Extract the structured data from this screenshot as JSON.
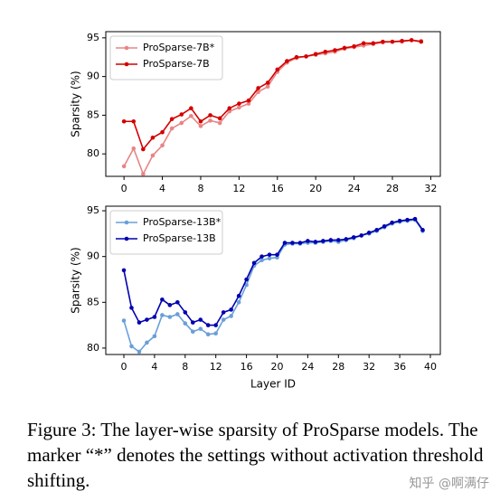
{
  "chart_data": [
    {
      "type": "line",
      "ylabel": "Sparsity (%)",
      "x": [
        0,
        1,
        2,
        3,
        4,
        5,
        6,
        7,
        8,
        9,
        10,
        11,
        12,
        13,
        14,
        15,
        16,
        17,
        18,
        19,
        20,
        21,
        22,
        23,
        24,
        25,
        26,
        27,
        28,
        29,
        30,
        31
      ],
      "xlim": [
        -1.9,
        33.0
      ],
      "xticks": [
        0,
        4,
        8,
        12,
        16,
        20,
        24,
        28,
        32
      ],
      "ylim": [
        77.1,
        95.8
      ],
      "yticks": [
        80,
        85,
        90,
        95
      ],
      "legend": "upper left",
      "series": [
        {
          "name": "ProSparse-7B*",
          "color": "#e88585",
          "values": [
            78.4,
            80.7,
            77.4,
            79.8,
            81.1,
            83.3,
            84.0,
            84.9,
            83.6,
            84.3,
            84.0,
            85.5,
            86.0,
            86.5,
            88.0,
            88.7,
            90.6,
            91.8,
            92.4,
            92.6,
            92.8,
            93.0,
            93.2,
            93.6,
            93.8,
            94.0,
            94.2,
            94.4,
            94.5,
            94.5,
            94.7,
            94.6
          ]
        },
        {
          "name": "ProSparse-7B",
          "color": "#d40000",
          "values": [
            84.2,
            84.2,
            80.6,
            82.1,
            82.8,
            84.5,
            85.1,
            85.9,
            84.2,
            85.0,
            84.6,
            85.9,
            86.5,
            86.9,
            88.5,
            89.2,
            90.9,
            92.0,
            92.5,
            92.6,
            92.9,
            93.2,
            93.4,
            93.7,
            93.9,
            94.3,
            94.3,
            94.5,
            94.5,
            94.6,
            94.7,
            94.5
          ]
        }
      ]
    },
    {
      "type": "line",
      "ylabel": "Sparsity (%)",
      "xlabel": "Layer ID",
      "x": [
        0,
        1,
        2,
        3,
        4,
        5,
        6,
        7,
        8,
        9,
        10,
        11,
        12,
        13,
        14,
        15,
        16,
        17,
        18,
        19,
        20,
        21,
        22,
        23,
        24,
        25,
        26,
        27,
        28,
        29,
        30,
        31,
        32,
        33,
        34,
        35,
        36,
        37,
        38,
        39
      ],
      "xlim": [
        -2.36,
        41.3
      ],
      "xticks": [
        0,
        4,
        8,
        12,
        16,
        20,
        24,
        28,
        32,
        36,
        40
      ],
      "ylim": [
        79.3,
        95.5
      ],
      "yticks": [
        80,
        85,
        90,
        95
      ],
      "legend": "upper left",
      "series": [
        {
          "name": "ProSparse-13B*",
          "color": "#6a9fd8",
          "values": [
            83.0,
            80.2,
            79.6,
            80.6,
            81.3,
            83.6,
            83.4,
            83.7,
            82.7,
            81.8,
            82.1,
            81.5,
            81.6,
            83.1,
            83.5,
            85.0,
            86.9,
            89.0,
            89.6,
            89.8,
            89.9,
            91.3,
            91.4,
            91.4,
            91.5,
            91.5,
            91.6,
            91.7,
            91.6,
            91.8,
            92.0,
            92.3,
            92.5,
            92.8,
            93.2,
            93.6,
            93.8,
            93.9,
            94.0,
            92.8
          ]
        },
        {
          "name": "ProSparse-13B",
          "color": "#0000b0",
          "values": [
            88.5,
            84.4,
            82.8,
            83.1,
            83.4,
            85.3,
            84.7,
            85.0,
            83.9,
            82.8,
            83.1,
            82.5,
            82.5,
            83.9,
            84.2,
            85.7,
            87.5,
            89.3,
            90.0,
            90.2,
            90.2,
            91.5,
            91.5,
            91.5,
            91.7,
            91.6,
            91.7,
            91.8,
            91.8,
            91.9,
            92.1,
            92.3,
            92.6,
            92.9,
            93.3,
            93.7,
            93.9,
            94.0,
            94.1,
            92.9
          ]
        }
      ]
    }
  ],
  "caption": "Figure 3: The layer-wise sparsity of ProSparse models. The marker “*” denotes the settings without activation threshold shifting.",
  "watermark": "知乎 @啊满仔"
}
